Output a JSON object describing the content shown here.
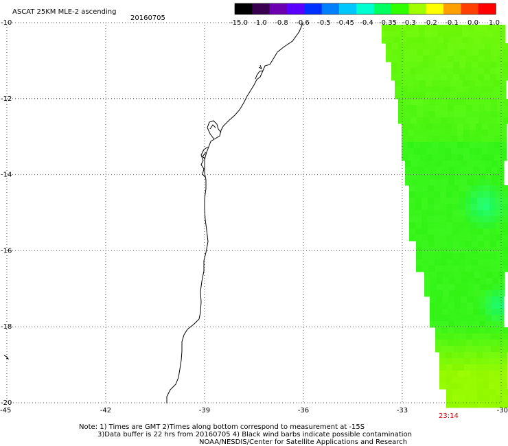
{
  "title": "ASCAT 25KM MLE-2 ascending",
  "date": "20160705",
  "colorbar": {
    "ticks": [
      "-15.0",
      "-1.0",
      "-0.8",
      "-0.6",
      "-0.5",
      "-0.45",
      "-0.4",
      "-0.35",
      "-0.3",
      "-0.2",
      "-0.1",
      "0.0",
      "1.0"
    ],
    "colors": [
      "#000000",
      "#3a0050",
      "#6a00b0",
      "#5a00ff",
      "#0030ff",
      "#0080ff",
      "#00c8ff",
      "#00ffd0",
      "#00ff60",
      "#30ff00",
      "#a0ff00",
      "#ffff00",
      "#ffa000",
      "#ff4000",
      "#ff0000"
    ]
  },
  "map": {
    "lon_range": [
      -45,
      -30
    ],
    "lat_range": [
      -20,
      -10
    ],
    "lon_ticks": [
      "-45",
      "-42",
      "-39",
      "-36",
      "-33",
      "-30"
    ],
    "lat_ticks": [
      "-10",
      "-12",
      "-14",
      "-16",
      "-18",
      "-20"
    ],
    "pass_time": "23:14",
    "data_color": "#2cf21a"
  },
  "notes": {
    "line1": "Note: 1) Times are GMT 2)Times along bottom correspond to measurement at -15S",
    "line2": "3)Data buffer is 22 hrs from 20160705 4) Black wind barbs indicate possible contamination",
    "line3": "NOAA/NESDIS/Center for Satellite Applications and Research"
  }
}
